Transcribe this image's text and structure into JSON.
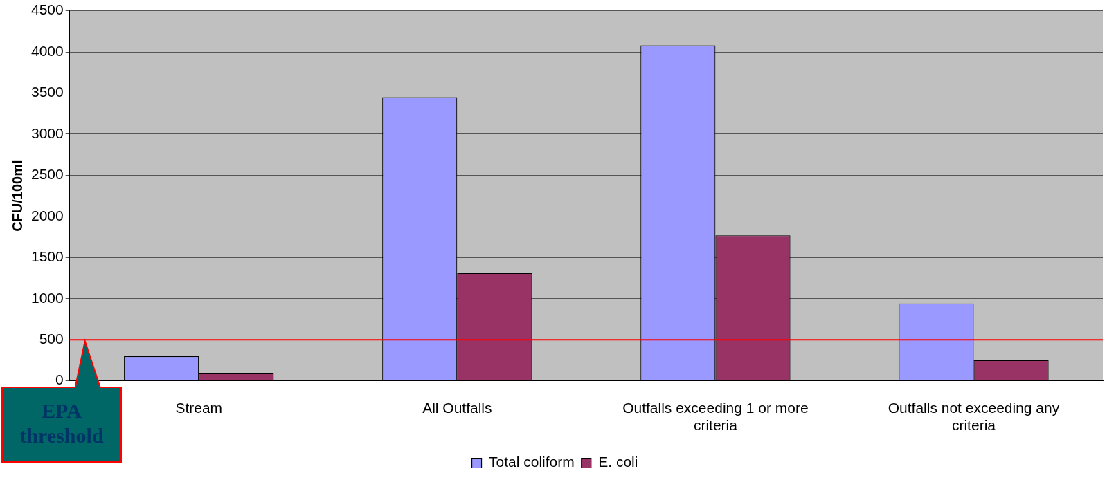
{
  "chart_data": {
    "type": "bar",
    "ylabel": "CFU/100ml",
    "categories": [
      "Stream",
      "All Outfalls",
      "Outfalls exceeding 1 or more criteria",
      "Outfalls not exceeding any criteria"
    ],
    "series": [
      {
        "name": "Total coliform",
        "color": "#9999ff",
        "values": [
          300,
          3450,
          4080,
          940
        ]
      },
      {
        "name": "E. coli",
        "color": "#993366",
        "values": [
          90,
          1310,
          1770,
          250
        ]
      }
    ],
    "ylim": [
      0,
      4500
    ],
    "yticks": [
      0,
      500,
      1000,
      1500,
      2000,
      2500,
      3000,
      3500,
      4000,
      4500
    ],
    "grid": "y",
    "legend": "bottom",
    "ref_lines": [
      {
        "axis": "y",
        "value": 500,
        "label": "EPA threshold",
        "color": "#ff0000"
      }
    ]
  }
}
